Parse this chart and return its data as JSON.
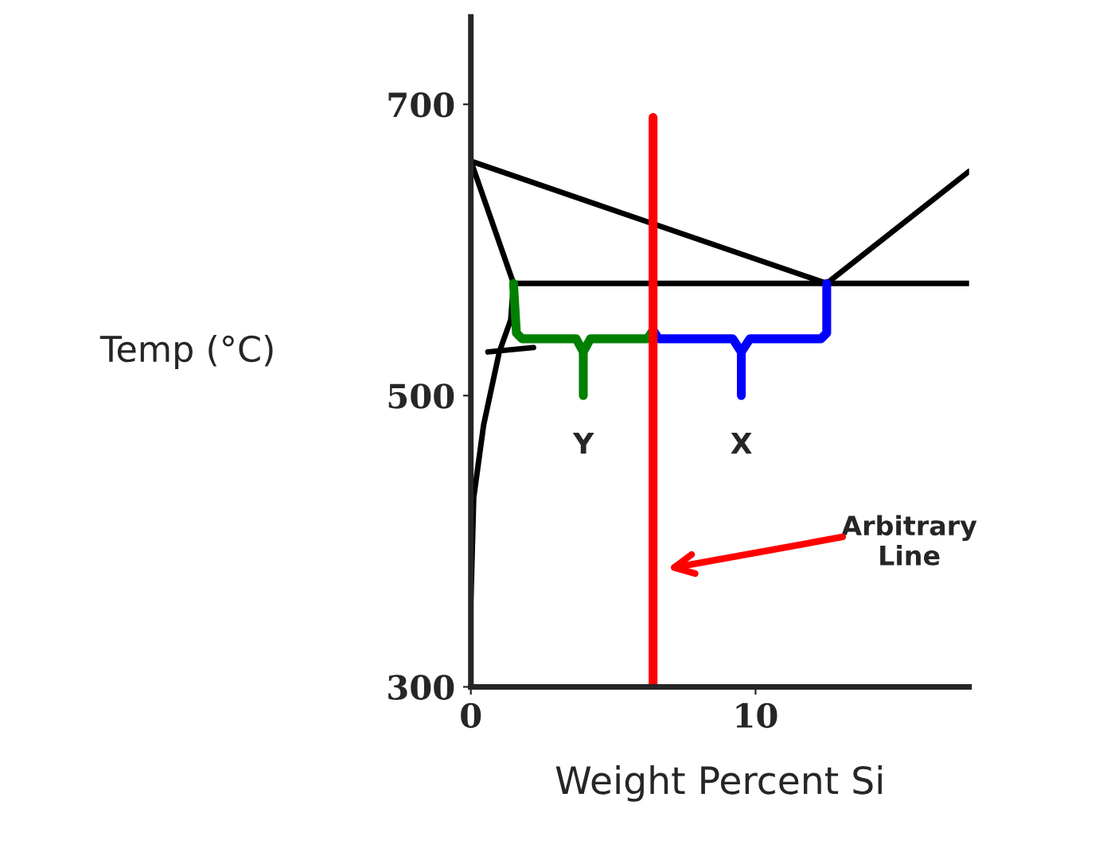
{
  "chart_data": {
    "type": "line",
    "xlabel": "Weight Percent Si",
    "ylabel": "Temp (°C)",
    "xlim": [
      0,
      17.5
    ],
    "ylim": [
      300,
      760
    ],
    "xticks": [
      0,
      10
    ],
    "yticks": [
      300,
      500,
      700
    ],
    "grid": false,
    "legend": false,
    "marker": "none",
    "line_style": "solid",
    "series": [
      {
        "color": "#000000",
        "x": [
          0,
          0,
          0.1,
          0.45,
          1.0,
          1.4,
          1.5,
          0,
          12.5,
          17.5
        ],
        "values": [
          300,
          358,
          430,
          480,
          530,
          552,
          577,
          661,
          577,
          654
        ]
      },
      {
        "color": "#000000",
        "x": [
          1.5,
          17.5
        ],
        "values": [
          577,
          577
        ]
      },
      {
        "color": "#000000",
        "x": [
          0.6,
          2.2
        ],
        "values": [
          530,
          533
        ]
      },
      {
        "color": "#008000",
        "x": [
          1.5,
          1.6,
          1.8,
          3.7,
          3.95,
          3.95,
          3.95,
          4.2,
          6.2,
          6.4
        ],
        "values": [
          577,
          543,
          539,
          539,
          530,
          500,
          530,
          539,
          539,
          545
        ]
      },
      {
        "color": "#0000ff",
        "x": [
          6.4,
          6.6,
          9.2,
          9.5,
          9.5,
          9.5,
          9.8,
          12.3,
          12.5,
          12.5
        ],
        "values": [
          545,
          539,
          539,
          530,
          500,
          530,
          539,
          539,
          543,
          577
        ]
      },
      {
        "color": "#ff0000",
        "x": [
          6.4,
          6.4
        ],
        "values": [
          300,
          691
        ]
      }
    ],
    "annotations": [
      "Y",
      "X",
      "Arbitrary\nLine"
    ]
  }
}
